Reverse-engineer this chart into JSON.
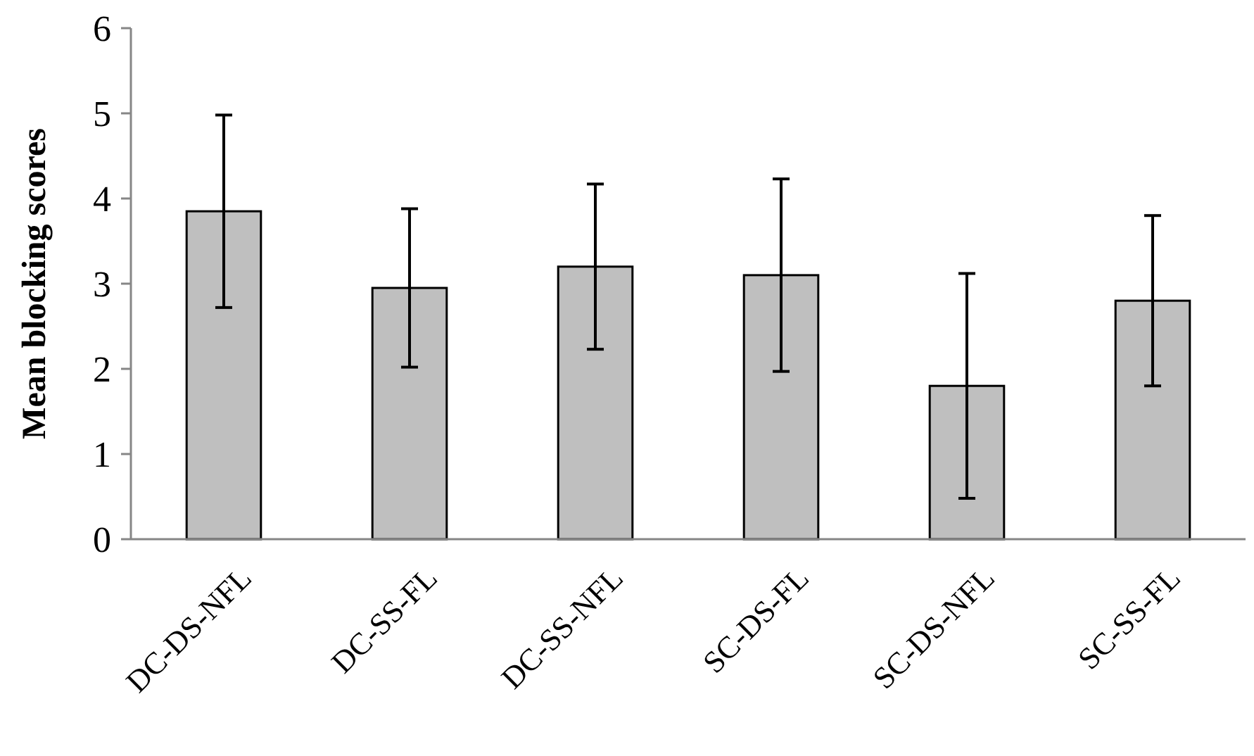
{
  "chart_data": {
    "type": "bar",
    "ylabel": "Mean blocking scores",
    "categories": [
      "DC-DS-NFL",
      "DC-SS-FL",
      "DC-SS-NFL",
      "SC-DS-FL",
      "SC-DS-NFL",
      "SC-SS-FL"
    ],
    "values": [
      3.85,
      2.95,
      3.2,
      3.1,
      1.8,
      2.8
    ],
    "errors": [
      1.13,
      0.93,
      0.97,
      1.13,
      1.32,
      1.0
    ],
    "color": "#bfbfbf",
    "ylim": [
      0,
      6
    ],
    "yticks": [
      0,
      1,
      2,
      3,
      4,
      5,
      6
    ],
    "grid": false
  }
}
